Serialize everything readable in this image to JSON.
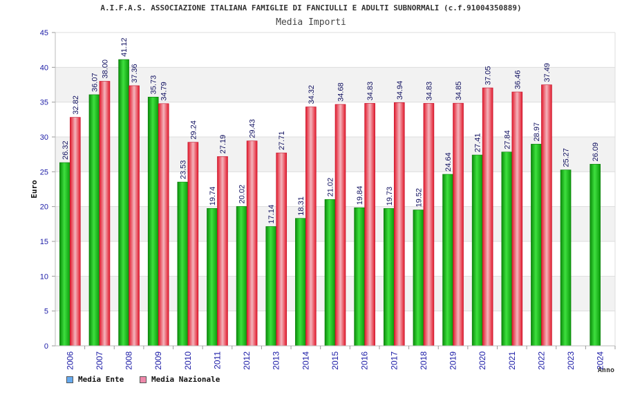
{
  "chart_data": {
    "type": "bar",
    "title": "A.I.F.A.S. ASSOCIAZIONE ITALIANA FAMIGLIE DI FANCIULLI E ADULTI SUBNORMALI (c.f.91004350889)",
    "subtitle": "Media Importi",
    "xlabel": "Anno",
    "ylabel": "Euro",
    "ylim": [
      0,
      45
    ],
    "yticks": [
      0,
      5,
      10,
      15,
      20,
      25,
      30,
      35,
      40,
      45
    ],
    "grid": true,
    "legend_position": "bottom-left",
    "categories": [
      "2006",
      "2007",
      "2008",
      "2009",
      "2010",
      "2011",
      "2012",
      "2013",
      "2014",
      "2015",
      "2016",
      "2017",
      "2018",
      "2019",
      "2020",
      "2021",
      "2022",
      "2023",
      "2024"
    ],
    "series": [
      {
        "name": "Media Ente",
        "legend_color": "#66aaee",
        "bar_color": "#19b319",
        "values": [
          26.32,
          36.07,
          41.12,
          35.73,
          23.53,
          19.74,
          20.02,
          17.14,
          18.31,
          21.02,
          19.84,
          19.73,
          19.52,
          24.64,
          27.41,
          27.84,
          28.97,
          25.27,
          26.09
        ],
        "labels": [
          "26.32",
          "36.07",
          "41.12",
          "35.73",
          "23.53",
          "19.74",
          "20.02",
          "17.14",
          "18.31",
          "21.02",
          "19.84",
          "19.73",
          "19.52",
          "24.64",
          "27.41",
          "27.84",
          "28.97",
          "25.27",
          "26.09"
        ]
      },
      {
        "name": "Media Nazionale",
        "legend_color": "#ee88aa",
        "bar_color": "#e8283a",
        "values": [
          32.82,
          38.0,
          37.36,
          34.79,
          29.24,
          27.19,
          29.43,
          27.71,
          34.32,
          34.68,
          34.83,
          34.94,
          34.83,
          34.85,
          37.05,
          36.46,
          37.49,
          null,
          null
        ],
        "labels": [
          "32.82",
          "38.00",
          "37.36",
          "34.79",
          "29.24",
          "27.19",
          "29.43",
          "27.71",
          "34.32",
          "34.68",
          "34.83",
          "34.94",
          "34.83",
          "34.85",
          "37.05",
          "36.46",
          "37.49",
          null,
          null
        ]
      }
    ]
  }
}
